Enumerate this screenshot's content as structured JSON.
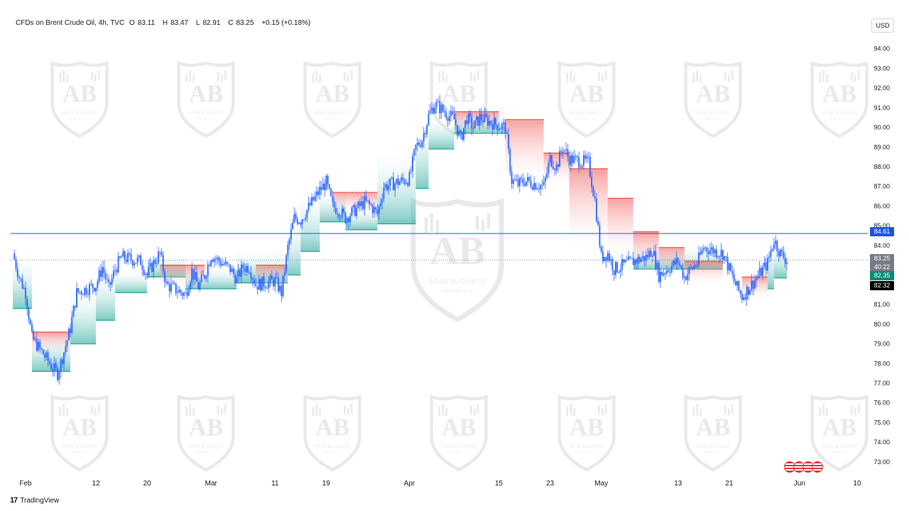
{
  "legend": {
    "symbol": "CFDs on Brent Crude Oil, 4h, TVC",
    "open_label": "O",
    "open": "83.11",
    "high_label": "H",
    "high": "83.47",
    "low_label": "L",
    "low": "82.91",
    "close_label": "C",
    "close": "83.25",
    "change": "+0.15 (+0.18%)"
  },
  "currency_button": "USD",
  "branding": "TradingView",
  "watermark": {
    "title": "ARAB BUSINESS",
    "subtitle": "COMPANY L.L.C",
    "monogram": "AB"
  },
  "price_badges": {
    "level_line": "84.61",
    "last_price": "83.25",
    "countdown": "40:22",
    "indicator": "82.35",
    "bid": "82.32"
  },
  "colors": {
    "up": "#2962ff",
    "down": "#2962ff",
    "support": "#26a69a",
    "resistance": "#ef5350",
    "level_line": "#1e53e5",
    "last_price_badge": "#787b86",
    "indicator_badge": "#0b8c74",
    "bid_badge": "#000000"
  },
  "chart_data": {
    "type": "candlestick",
    "title": "CFDs on Brent Crude Oil, 4h, TVC",
    "y_ticks": [
      "94.00",
      "93.00",
      "92.00",
      "91.00",
      "90.00",
      "89.00",
      "88.00",
      "87.00",
      "86.00",
      "85.00",
      "84.00",
      "83.00",
      "82.00",
      "81.00",
      "80.00",
      "79.00",
      "78.00",
      "77.00",
      "76.00",
      "75.00",
      "74.00",
      "73.00"
    ],
    "ylim": [
      72.6,
      94.6
    ],
    "x_ticks": [
      {
        "date": "2024-02-01",
        "label": "Feb"
      },
      {
        "date": "2024-02-12",
        "label": "12"
      },
      {
        "date": "2024-02-20",
        "label": "20"
      },
      {
        "date": "2024-03-01",
        "label": "Mar"
      },
      {
        "date": "2024-03-11",
        "label": "11"
      },
      {
        "date": "2024-03-19",
        "label": "19"
      },
      {
        "date": "2024-04-01",
        "label": "Apr"
      },
      {
        "date": "2024-04-15",
        "label": "15"
      },
      {
        "date": "2024-04-23",
        "label": "23"
      },
      {
        "date": "2024-05-01",
        "label": "May"
      },
      {
        "date": "2024-05-13",
        "label": "13"
      },
      {
        "date": "2024-05-21",
        "label": "21"
      },
      {
        "date": "2024-06-01",
        "label": "Jun"
      },
      {
        "date": "2024-06-10",
        "label": "10"
      }
    ],
    "horizontal_level": 84.61,
    "last_close": 83.25,
    "close_path": [
      {
        "date": "2024-01-30",
        "close": 83.6
      },
      {
        "date": "2024-01-31",
        "close": 82.4
      },
      {
        "date": "2024-02-01",
        "close": 81.6
      },
      {
        "date": "2024-02-02",
        "close": 79.3
      },
      {
        "date": "2024-02-05",
        "close": 77.9
      },
      {
        "date": "2024-02-06",
        "close": 77.5
      },
      {
        "date": "2024-02-07",
        "close": 78.6
      },
      {
        "date": "2024-02-08",
        "close": 79.8
      },
      {
        "date": "2024-02-09",
        "close": 81.6
      },
      {
        "date": "2024-02-12",
        "close": 82.0
      },
      {
        "date": "2024-02-13",
        "close": 82.9
      },
      {
        "date": "2024-02-14",
        "close": 81.8
      },
      {
        "date": "2024-02-15",
        "close": 82.8
      },
      {
        "date": "2024-02-16",
        "close": 83.4
      },
      {
        "date": "2024-02-19",
        "close": 83.2
      },
      {
        "date": "2024-02-20",
        "close": 82.5
      },
      {
        "date": "2024-02-21",
        "close": 83.1
      },
      {
        "date": "2024-02-22",
        "close": 83.6
      },
      {
        "date": "2024-02-23",
        "close": 82.0
      },
      {
        "date": "2024-02-26",
        "close": 81.5
      },
      {
        "date": "2024-02-27",
        "close": 82.7
      },
      {
        "date": "2024-02-28",
        "close": 81.9
      },
      {
        "date": "2024-02-29",
        "close": 82.5
      },
      {
        "date": "2024-03-01",
        "close": 83.5
      },
      {
        "date": "2024-03-04",
        "close": 82.8
      },
      {
        "date": "2024-03-05",
        "close": 82.3
      },
      {
        "date": "2024-03-06",
        "close": 82.9
      },
      {
        "date": "2024-03-07",
        "close": 82.9
      },
      {
        "date": "2024-03-08",
        "close": 82.0
      },
      {
        "date": "2024-03-11",
        "close": 82.2
      },
      {
        "date": "2024-03-12",
        "close": 81.6
      },
      {
        "date": "2024-03-13",
        "close": 83.9
      },
      {
        "date": "2024-03-14",
        "close": 85.4
      },
      {
        "date": "2024-03-15",
        "close": 85.3
      },
      {
        "date": "2024-03-18",
        "close": 86.8
      },
      {
        "date": "2024-03-19",
        "close": 87.2
      },
      {
        "date": "2024-03-20",
        "close": 86.0
      },
      {
        "date": "2024-03-21",
        "close": 85.8
      },
      {
        "date": "2024-03-22",
        "close": 85.4
      },
      {
        "date": "2024-03-25",
        "close": 86.2
      },
      {
        "date": "2024-03-26",
        "close": 86.0
      },
      {
        "date": "2024-03-27",
        "close": 85.6
      },
      {
        "date": "2024-03-28",
        "close": 87.0
      },
      {
        "date": "2024-04-01",
        "close": 87.4
      },
      {
        "date": "2024-04-02",
        "close": 89.0
      },
      {
        "date": "2024-04-03",
        "close": 89.4
      },
      {
        "date": "2024-04-04",
        "close": 90.6
      },
      {
        "date": "2024-04-05",
        "close": 91.2
      },
      {
        "date": "2024-04-08",
        "close": 90.4
      },
      {
        "date": "2024-04-09",
        "close": 89.4
      },
      {
        "date": "2024-04-10",
        "close": 90.5
      },
      {
        "date": "2024-04-11",
        "close": 90.0
      },
      {
        "date": "2024-04-12",
        "close": 90.5
      },
      {
        "date": "2024-04-15",
        "close": 90.1
      },
      {
        "date": "2024-04-16",
        "close": 90.0
      },
      {
        "date": "2024-04-17",
        "close": 87.3
      },
      {
        "date": "2024-04-18",
        "close": 87.1
      },
      {
        "date": "2024-04-19",
        "close": 87.3
      },
      {
        "date": "2024-04-22",
        "close": 87.0
      },
      {
        "date": "2024-04-23",
        "close": 88.4
      },
      {
        "date": "2024-04-24",
        "close": 88.0
      },
      {
        "date": "2024-04-25",
        "close": 89.0
      },
      {
        "date": "2024-04-26",
        "close": 88.4
      },
      {
        "date": "2024-04-29",
        "close": 88.2
      },
      {
        "date": "2024-04-30",
        "close": 86.3
      },
      {
        "date": "2024-05-01",
        "close": 83.4
      },
      {
        "date": "2024-05-02",
        "close": 83.6
      },
      {
        "date": "2024-05-03",
        "close": 82.8
      },
      {
        "date": "2024-05-06",
        "close": 83.2
      },
      {
        "date": "2024-05-07",
        "close": 83.3
      },
      {
        "date": "2024-05-08",
        "close": 83.4
      },
      {
        "date": "2024-05-09",
        "close": 83.8
      },
      {
        "date": "2024-05-10",
        "close": 82.5
      },
      {
        "date": "2024-05-13",
        "close": 83.2
      },
      {
        "date": "2024-05-14",
        "close": 82.4
      },
      {
        "date": "2024-05-15",
        "close": 82.8
      },
      {
        "date": "2024-05-16",
        "close": 83.1
      },
      {
        "date": "2024-05-17",
        "close": 83.9
      },
      {
        "date": "2024-05-20",
        "close": 83.6
      },
      {
        "date": "2024-05-21",
        "close": 82.8
      },
      {
        "date": "2024-05-22",
        "close": 82.0
      },
      {
        "date": "2024-05-23",
        "close": 81.4
      },
      {
        "date": "2024-05-24",
        "close": 81.8
      },
      {
        "date": "2024-05-27",
        "close": 83.1
      },
      {
        "date": "2024-05-28",
        "close": 84.3
      },
      {
        "date": "2024-05-29",
        "close": 83.6
      },
      {
        "date": "2024-05-30",
        "close": 83.25
      }
    ],
    "support_steps": [
      {
        "start": "2024-01-30",
        "end": "2024-02-02",
        "value": 80.8
      },
      {
        "start": "2024-02-02",
        "end": "2024-02-08",
        "value": 77.6
      },
      {
        "start": "2024-02-08",
        "end": "2024-02-12",
        "value": 79.0
      },
      {
        "start": "2024-02-12",
        "end": "2024-02-15",
        "value": 80.2
      },
      {
        "start": "2024-02-15",
        "end": "2024-02-20",
        "value": 81.6
      },
      {
        "start": "2024-02-20",
        "end": "2024-02-26",
        "value": 82.4
      },
      {
        "start": "2024-02-26",
        "end": "2024-03-05",
        "value": 81.8
      },
      {
        "start": "2024-03-05",
        "end": "2024-03-13",
        "value": 82.1
      },
      {
        "start": "2024-03-13",
        "end": "2024-03-15",
        "value": 82.5
      },
      {
        "start": "2024-03-15",
        "end": "2024-03-18",
        "value": 83.7
      },
      {
        "start": "2024-03-18",
        "end": "2024-03-22",
        "value": 85.2
      },
      {
        "start": "2024-03-22",
        "end": "2024-03-27",
        "value": 84.8
      },
      {
        "start": "2024-03-27",
        "end": "2024-04-02",
        "value": 85.1
      },
      {
        "start": "2024-04-02",
        "end": "2024-04-04",
        "value": 86.9
      },
      {
        "start": "2024-04-04",
        "end": "2024-04-08",
        "value": 88.9
      },
      {
        "start": "2024-04-08",
        "end": "2024-04-16",
        "value": 89.7
      },
      {
        "start": "2024-05-06",
        "end": "2024-05-20",
        "value": 82.8
      },
      {
        "start": "2024-05-27",
        "end": "2024-05-28",
        "value": 81.8
      },
      {
        "start": "2024-05-28",
        "end": "2024-05-30",
        "value": 82.35
      }
    ],
    "resistance_steps": [
      {
        "start": "2024-02-02",
        "end": "2024-02-08",
        "value": 79.6
      },
      {
        "start": "2024-02-22",
        "end": "2024-02-29",
        "value": 83.0
      },
      {
        "start": "2024-03-08",
        "end": "2024-03-13",
        "value": 83.0
      },
      {
        "start": "2024-03-20",
        "end": "2024-03-27",
        "value": 86.7
      },
      {
        "start": "2024-04-08",
        "end": "2024-04-15",
        "value": 90.8
      },
      {
        "start": "2024-04-16",
        "end": "2024-04-22",
        "value": 90.4
      },
      {
        "start": "2024-04-22",
        "end": "2024-04-26",
        "value": 88.7
      },
      {
        "start": "2024-04-26",
        "end": "2024-05-02",
        "value": 87.9
      },
      {
        "start": "2024-05-02",
        "end": "2024-05-06",
        "value": 86.4
      },
      {
        "start": "2024-05-06",
        "end": "2024-05-10",
        "value": 84.7
      },
      {
        "start": "2024-05-10",
        "end": "2024-05-14",
        "value": 83.9
      },
      {
        "start": "2024-05-14",
        "end": "2024-05-20",
        "value": 83.2
      },
      {
        "start": "2024-05-23",
        "end": "2024-05-27",
        "value": 82.4
      }
    ]
  }
}
